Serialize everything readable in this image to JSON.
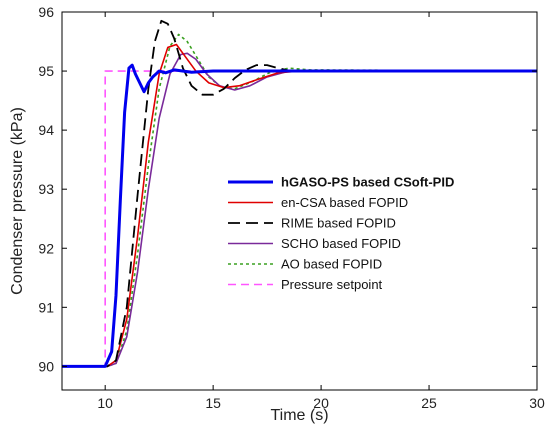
{
  "chart_data": {
    "type": "line",
    "xlabel": "Time (s)",
    "ylabel": "Condenser pressure (kPa)",
    "xlim": [
      8,
      30
    ],
    "ylim": [
      89.6,
      96
    ],
    "xticks": [
      10,
      15,
      20,
      25,
      30
    ],
    "yticks": [
      90,
      91,
      92,
      93,
      94,
      95,
      96
    ],
    "grid": false,
    "legend_position": "center-right",
    "series": [
      {
        "name": "hGASO-PS based CSoft-PID",
        "color": "#0000ee",
        "dash": "solid",
        "bold": true,
        "x": [
          8,
          10.0,
          10.3,
          10.5,
          10.7,
          10.9,
          11.1,
          11.25,
          11.4,
          11.6,
          11.8,
          12.0,
          12.2,
          12.5,
          12.8,
          13.2,
          14,
          15,
          16,
          20,
          30
        ],
        "y": [
          90,
          90,
          90.25,
          91.2,
          92.8,
          94.3,
          95.05,
          95.1,
          94.95,
          94.8,
          94.65,
          94.8,
          94.9,
          95.0,
          94.97,
          95.02,
          94.98,
          95.0,
          95.0,
          95.0,
          95.0
        ]
      },
      {
        "name": "en-CSA based FOPID",
        "color": "#e00000",
        "dash": "solid",
        "bold": false,
        "x": [
          8,
          10.1,
          10.5,
          11.0,
          11.5,
          12.0,
          12.5,
          12.9,
          13.3,
          13.7,
          14.2,
          14.8,
          15.5,
          16.2,
          17.0,
          18.0,
          19.0,
          20,
          30
        ],
        "y": [
          90,
          90,
          90.1,
          90.8,
          92.2,
          93.8,
          94.95,
          95.4,
          95.45,
          95.25,
          95.0,
          94.8,
          94.72,
          94.75,
          94.85,
          94.97,
          95.0,
          95.0,
          95.0
        ]
      },
      {
        "name": "RIME based FOPID",
        "color": "#000000",
        "dash": "12,6",
        "bold": false,
        "x": [
          8,
          10.1,
          10.5,
          11.0,
          11.5,
          12.0,
          12.3,
          12.6,
          12.9,
          13.2,
          13.6,
          14.0,
          14.5,
          15.0,
          15.5,
          16.0,
          16.5,
          17.0,
          17.5,
          18.0,
          18.6,
          19.5,
          30
        ],
        "y": [
          90,
          90,
          90.1,
          91.0,
          92.9,
          94.7,
          95.5,
          95.85,
          95.8,
          95.55,
          95.05,
          94.75,
          94.6,
          94.6,
          94.7,
          94.88,
          95.02,
          95.1,
          95.1,
          95.05,
          95.0,
          95.0,
          95.0
        ]
      },
      {
        "name": "SCHO based FOPID",
        "color": "#7a2a9a",
        "dash": "solid",
        "bold": false,
        "x": [
          8,
          10.1,
          10.5,
          11.0,
          11.5,
          12.0,
          12.5,
          13.0,
          13.5,
          13.8,
          14.2,
          14.7,
          15.3,
          16.0,
          16.7,
          17.5,
          18.5,
          19.5,
          30
        ],
        "y": [
          90,
          90,
          90.05,
          90.5,
          91.6,
          93.0,
          94.2,
          94.95,
          95.28,
          95.3,
          95.2,
          94.95,
          94.75,
          94.68,
          94.75,
          94.9,
          95.0,
          95.0,
          95.0
        ]
      },
      {
        "name": "AO based FOPID",
        "color": "#3aa020",
        "dash": "3,3",
        "bold": false,
        "x": [
          8,
          10.1,
          10.5,
          11.0,
          11.5,
          12.0,
          12.5,
          13.0,
          13.4,
          13.8,
          14.3,
          14.8,
          15.4,
          16.0,
          16.8,
          17.6,
          18.5,
          19.5,
          30
        ],
        "y": [
          90,
          90,
          90.05,
          90.6,
          91.9,
          93.4,
          94.7,
          95.42,
          95.62,
          95.5,
          95.2,
          94.9,
          94.72,
          94.7,
          94.82,
          94.97,
          95.05,
          95.02,
          95.0
        ]
      },
      {
        "name": "Pressure setpoint",
        "color": "#ff55ff",
        "dash": "8,5",
        "bold": false,
        "x": [
          8,
          10,
          10,
          30
        ],
        "y": [
          90,
          90,
          95,
          95
        ]
      }
    ]
  }
}
